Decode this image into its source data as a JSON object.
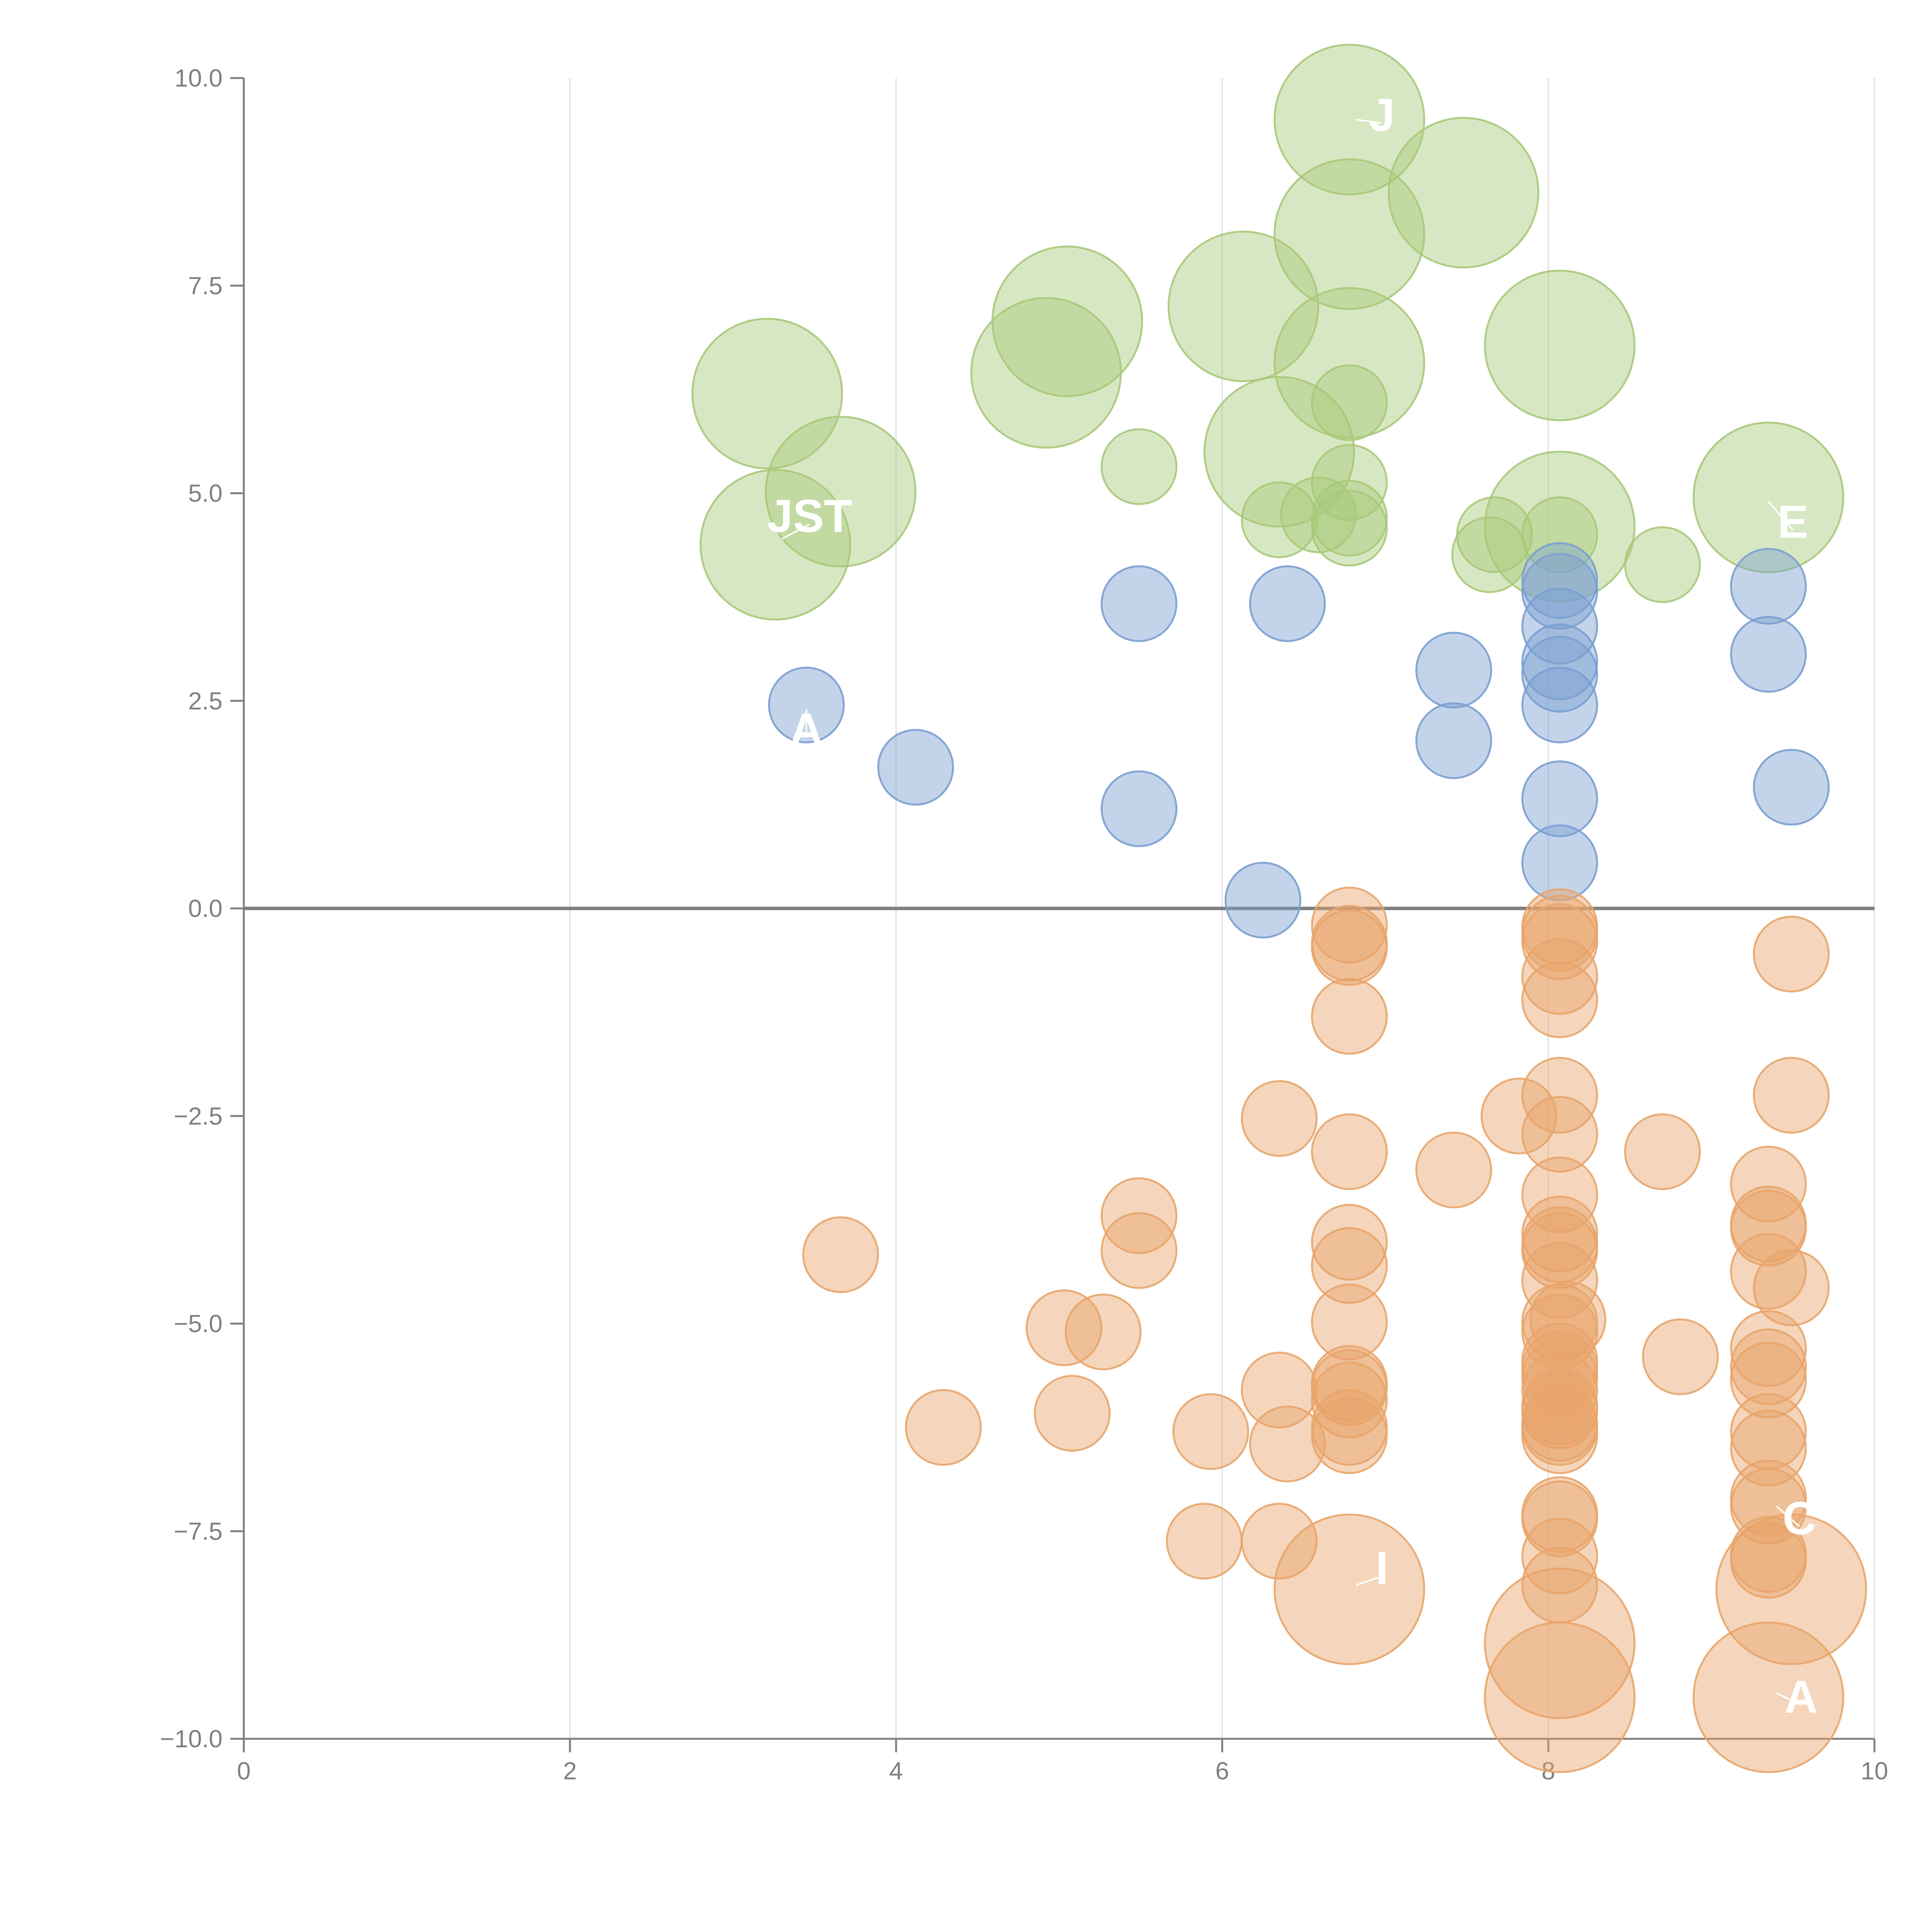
{
  "chart_data": {
    "type": "scatter",
    "title": "",
    "xlabel": "",
    "ylabel": "",
    "xlim": [
      0,
      10
    ],
    "ylim": [
      -10,
      10
    ],
    "x_ticks": [
      "0",
      "2",
      "4",
      "6",
      "8",
      "10"
    ],
    "x_tick_values": [
      0,
      2,
      4,
      6,
      8,
      10
    ],
    "y_ticks": [
      "10.0",
      "7.5",
      "5.0",
      "2.5",
      "0.0",
      "−2.5",
      "−5.0",
      "−7.5",
      "−10.0"
    ],
    "y_tick_values": [
      10,
      7.5,
      5,
      2.5,
      0,
      -2.5,
      -5,
      -7.5,
      -10
    ],
    "vertical_grid": true,
    "zero_line": true,
    "colors": {
      "green": "#a9c97a",
      "blue": "#7b9fd1",
      "orange": "#e8a56a",
      "axis": "#808080",
      "grid": "#dddddd",
      "zero_line": "#808080",
      "label": "#ffffff"
    },
    "series": [
      {
        "name": "green",
        "color": "#a9c97a",
        "points": [
          {
            "x": 6.78,
            "y": 9.5,
            "r": 2.2
          },
          {
            "x": 7.48,
            "y": 8.62,
            "r": 2.2
          },
          {
            "x": 6.78,
            "y": 8.12,
            "r": 2.2
          },
          {
            "x": 5.05,
            "y": 7.07,
            "r": 2.2
          },
          {
            "x": 6.13,
            "y": 7.25,
            "r": 2.2
          },
          {
            "x": 8.07,
            "y": 6.78,
            "r": 2.2
          },
          {
            "x": 6.78,
            "y": 6.57,
            "r": 2.2
          },
          {
            "x": 4.92,
            "y": 6.45,
            "r": 2.2
          },
          {
            "x": 3.21,
            "y": 6.2,
            "r": 2.2
          },
          {
            "x": 6.78,
            "y": 6.09,
            "r": 1.1
          },
          {
            "x": 6.35,
            "y": 5.5,
            "r": 2.2
          },
          {
            "x": 5.49,
            "y": 5.32,
            "r": 1.1
          },
          {
            "x": 6.78,
            "y": 5.13,
            "r": 1.1
          },
          {
            "x": 3.66,
            "y": 5.02,
            "r": 2.2
          },
          {
            "x": 9.35,
            "y": 4.95,
            "r": 2.2
          },
          {
            "x": 6.35,
            "y": 4.68,
            "r": 1.1
          },
          {
            "x": 6.59,
            "y": 4.74,
            "r": 1.1
          },
          {
            "x": 6.78,
            "y": 4.7,
            "r": 1.1
          },
          {
            "x": 6.78,
            "y": 4.58,
            "r": 1.1
          },
          {
            "x": 8.07,
            "y": 4.6,
            "r": 2.2
          },
          {
            "x": 8.07,
            "y": 4.5,
            "r": 1.1
          },
          {
            "x": 7.67,
            "y": 4.5,
            "r": 1.1
          },
          {
            "x": 7.64,
            "y": 4.26,
            "r": 1.1
          },
          {
            "x": 3.26,
            "y": 4.38,
            "r": 2.2
          },
          {
            "x": 8.7,
            "y": 4.14,
            "r": 1.1
          }
        ]
      },
      {
        "name": "blue",
        "color": "#7b9fd1",
        "points": [
          {
            "x": 8.07,
            "y": 3.95,
            "r": 1.1
          },
          {
            "x": 9.35,
            "y": 3.88,
            "r": 1.1
          },
          {
            "x": 8.07,
            "y": 3.82,
            "r": 1.1
          },
          {
            "x": 5.49,
            "y": 3.67,
            "r": 1.1
          },
          {
            "x": 6.4,
            "y": 3.67,
            "r": 1.1
          },
          {
            "x": 8.07,
            "y": 3.4,
            "r": 1.1
          },
          {
            "x": 9.35,
            "y": 3.06,
            "r": 1.1
          },
          {
            "x": 8.07,
            "y": 2.97,
            "r": 1.1
          },
          {
            "x": 7.42,
            "y": 2.87,
            "r": 1.1
          },
          {
            "x": 8.07,
            "y": 2.82,
            "r": 1.1
          },
          {
            "x": 3.45,
            "y": 2.45,
            "r": 1.1
          },
          {
            "x": 8.07,
            "y": 2.45,
            "r": 1.1
          },
          {
            "x": 7.42,
            "y": 2.02,
            "r": 1.1
          },
          {
            "x": 4.12,
            "y": 1.7,
            "r": 1.1
          },
          {
            "x": 9.49,
            "y": 1.46,
            "r": 1.1
          },
          {
            "x": 8.07,
            "y": 1.32,
            "r": 1.1
          },
          {
            "x": 5.49,
            "y": 1.2,
            "r": 1.1
          },
          {
            "x": 8.07,
            "y": 0.55,
            "r": 1.1
          },
          {
            "x": 6.25,
            "y": 0.1,
            "r": 1.1
          }
        ]
      },
      {
        "name": "orange",
        "color": "#e8a56a",
        "points": [
          {
            "x": 6.78,
            "y": -0.2,
            "r": 1.1
          },
          {
            "x": 6.78,
            "y": -0.42,
            "r": 1.1
          },
          {
            "x": 6.78,
            "y": -0.47,
            "r": 1.1
          },
          {
            "x": 8.07,
            "y": -0.22,
            "r": 1.1
          },
          {
            "x": 8.07,
            "y": -0.3,
            "r": 1.1
          },
          {
            "x": 8.07,
            "y": -0.4,
            "r": 1.1
          },
          {
            "x": 9.49,
            "y": -0.55,
            "r": 1.1
          },
          {
            "x": 8.07,
            "y": -0.82,
            "r": 1.1
          },
          {
            "x": 8.07,
            "y": -1.1,
            "r": 1.1
          },
          {
            "x": 6.78,
            "y": -1.3,
            "r": 1.1
          },
          {
            "x": 8.07,
            "y": -2.25,
            "r": 1.1
          },
          {
            "x": 9.49,
            "y": -2.25,
            "r": 1.1
          },
          {
            "x": 7.82,
            "y": -2.5,
            "r": 1.1
          },
          {
            "x": 6.35,
            "y": -2.53,
            "r": 1.1
          },
          {
            "x": 8.07,
            "y": -2.72,
            "r": 1.1
          },
          {
            "x": 6.78,
            "y": -2.93,
            "r": 1.1
          },
          {
            "x": 8.7,
            "y": -2.93,
            "r": 1.1
          },
          {
            "x": 7.42,
            "y": -3.15,
            "r": 1.1
          },
          {
            "x": 9.35,
            "y": -3.32,
            "r": 1.1
          },
          {
            "x": 8.07,
            "y": -3.45,
            "r": 1.1
          },
          {
            "x": 5.49,
            "y": -3.7,
            "r": 1.1
          },
          {
            "x": 9.35,
            "y": -3.8,
            "r": 1.1
          },
          {
            "x": 9.35,
            "y": -3.85,
            "r": 1.1
          },
          {
            "x": 8.07,
            "y": -3.92,
            "r": 1.1
          },
          {
            "x": 6.78,
            "y": -4.02,
            "r": 1.1
          },
          {
            "x": 8.07,
            "y": -4.05,
            "r": 1.1
          },
          {
            "x": 8.07,
            "y": -4.12,
            "r": 1.1
          },
          {
            "x": 5.49,
            "y": -4.12,
            "r": 1.1
          },
          {
            "x": 3.66,
            "y": -4.17,
            "r": 1.1
          },
          {
            "x": 6.78,
            "y": -4.3,
            "r": 1.1
          },
          {
            "x": 9.35,
            "y": -4.37,
            "r": 1.1
          },
          {
            "x": 8.07,
            "y": -4.48,
            "r": 1.1
          },
          {
            "x": 9.49,
            "y": -4.57,
            "r": 1.1
          },
          {
            "x": 8.12,
            "y": -4.95,
            "r": 1.1
          },
          {
            "x": 8.07,
            "y": -4.98,
            "r": 1.1
          },
          {
            "x": 6.78,
            "y": -4.98,
            "r": 1.1
          },
          {
            "x": 5.03,
            "y": -5.05,
            "r": 1.1
          },
          {
            "x": 8.07,
            "y": -5.1,
            "r": 1.1
          },
          {
            "x": 5.27,
            "y": -5.1,
            "r": 1.1
          },
          {
            "x": 9.35,
            "y": -5.3,
            "r": 1.1
          },
          {
            "x": 8.81,
            "y": -5.4,
            "r": 1.1
          },
          {
            "x": 8.07,
            "y": -5.45,
            "r": 1.1
          },
          {
            "x": 8.07,
            "y": -5.55,
            "r": 1.1
          },
          {
            "x": 9.35,
            "y": -5.52,
            "r": 1.1
          },
          {
            "x": 8.07,
            "y": -5.65,
            "r": 1.1
          },
          {
            "x": 9.35,
            "y": -5.68,
            "r": 1.1
          },
          {
            "x": 6.78,
            "y": -5.72,
            "r": 1.1
          },
          {
            "x": 6.78,
            "y": -5.77,
            "r": 1.1
          },
          {
            "x": 8.07,
            "y": -5.8,
            "r": 1.1
          },
          {
            "x": 6.35,
            "y": -5.8,
            "r": 1.1
          },
          {
            "x": 6.78,
            "y": -5.92,
            "r": 1.1
          },
          {
            "x": 8.07,
            "y": -6.0,
            "r": 1.1
          },
          {
            "x": 8.07,
            "y": -6.05,
            "r": 1.1
          },
          {
            "x": 5.08,
            "y": -6.08,
            "r": 1.1
          },
          {
            "x": 8.07,
            "y": -6.2,
            "r": 1.1
          },
          {
            "x": 8.07,
            "y": -6.25,
            "r": 1.1
          },
          {
            "x": 4.29,
            "y": -6.25,
            "r": 1.1
          },
          {
            "x": 6.78,
            "y": -6.25,
            "r": 1.1
          },
          {
            "x": 9.35,
            "y": -6.3,
            "r": 1.1
          },
          {
            "x": 5.93,
            "y": -6.3,
            "r": 1.1
          },
          {
            "x": 8.07,
            "y": -6.35,
            "r": 1.1
          },
          {
            "x": 6.78,
            "y": -6.35,
            "r": 1.1
          },
          {
            "x": 6.4,
            "y": -6.45,
            "r": 1.1
          },
          {
            "x": 9.35,
            "y": -6.5,
            "r": 1.1
          },
          {
            "x": 9.35,
            "y": -7.1,
            "r": 1.1
          },
          {
            "x": 9.35,
            "y": -7.2,
            "r": 1.1
          },
          {
            "x": 8.07,
            "y": -7.3,
            "r": 1.1
          },
          {
            "x": 8.07,
            "y": -7.35,
            "r": 1.1
          },
          {
            "x": 5.89,
            "y": -7.62,
            "r": 1.1
          },
          {
            "x": 6.35,
            "y": -7.62,
            "r": 1.1
          },
          {
            "x": 9.35,
            "y": -7.78,
            "r": 1.1
          },
          {
            "x": 8.07,
            "y": -7.8,
            "r": 1.1
          },
          {
            "x": 9.35,
            "y": -7.85,
            "r": 1.1
          },
          {
            "x": 8.07,
            "y": -8.15,
            "r": 1.1
          },
          {
            "x": 6.78,
            "y": -8.2,
            "r": 2.2
          },
          {
            "x": 9.49,
            "y": -8.2,
            "r": 2.2
          },
          {
            "x": 8.07,
            "y": -8.85,
            "r": 2.2
          },
          {
            "x": 8.07,
            "y": -9.5,
            "r": 2.2
          },
          {
            "x": 9.35,
            "y": -9.5,
            "r": 2.2
          }
        ]
      }
    ],
    "annotations": [
      {
        "text": "J",
        "x": 6.98,
        "y": 9.55,
        "lx": 6.82,
        "ly": 9.5
      },
      {
        "text": "JST",
        "x": 3.47,
        "y": 4.72,
        "lx": 3.3,
        "ly": 4.45
      },
      {
        "text": "E",
        "x": 9.5,
        "y": 4.65,
        "lx": 9.35,
        "ly": 4.9
      },
      {
        "text": "A",
        "x": 3.45,
        "y": 2.15,
        "lx": 3.45,
        "ly": 2.4
      },
      {
        "text": "C",
        "x": 9.54,
        "y": -7.35,
        "lx": 9.4,
        "ly": -7.2
      },
      {
        "text": "I",
        "x": 6.98,
        "y": -7.95,
        "lx": 6.82,
        "ly": -8.15
      },
      {
        "text": "A",
        "x": 9.55,
        "y": -9.5,
        "lx": 9.4,
        "ly": -9.45
      }
    ]
  }
}
